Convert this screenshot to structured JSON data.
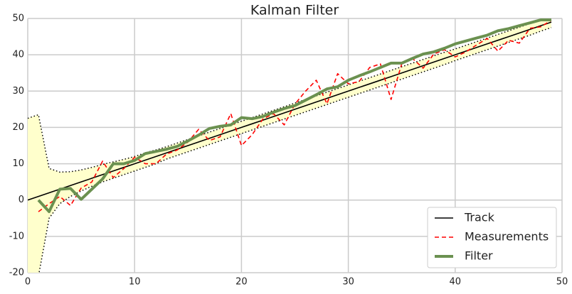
{
  "chart_data": {
    "type": "line",
    "title": "Kalman Filter",
    "x": [
      0,
      1,
      2,
      3,
      4,
      5,
      6,
      7,
      8,
      9,
      10,
      11,
      12,
      13,
      14,
      15,
      16,
      17,
      18,
      19,
      20,
      21,
      22,
      23,
      24,
      25,
      26,
      27,
      28,
      29,
      30,
      31,
      32,
      33,
      34,
      35,
      36,
      37,
      38,
      39,
      40,
      41,
      42,
      43,
      44,
      45,
      46,
      47,
      48,
      49
    ],
    "band": {
      "color": "#ffffcc",
      "upper": [
        22.5,
        23.5,
        8.7,
        7.7,
        7.8,
        8.3,
        9,
        9.8,
        10.5,
        11.2,
        12,
        13,
        13.8,
        14.7,
        15.7,
        16.7,
        17.7,
        18.7,
        19.7,
        20.7,
        21.7,
        22.7,
        23.7,
        24.7,
        25.7,
        26.7,
        27.7,
        28.7,
        29.7,
        30.7,
        31.7,
        32.7,
        33.7,
        34.7,
        35.7,
        36.7,
        37.7,
        38.7,
        39.7,
        40.7,
        41.6,
        42.6,
        43.6,
        44.6,
        45.6,
        46.6,
        47.6,
        48.6,
        49.5,
        50.5
      ],
      "lower": [
        -25,
        -21,
        -5,
        -1,
        1,
        2.5,
        3.8,
        5,
        6,
        7,
        8,
        9,
        10,
        11.3,
        12.3,
        13.3,
        14.3,
        15.3,
        16.3,
        17.3,
        18.3,
        19.3,
        20.3,
        21.3,
        22.3,
        23.3,
        24.3,
        25.3,
        26.3,
        27.3,
        28.3,
        29.3,
        30.3,
        31.3,
        32.3,
        33.3,
        34.3,
        35.3,
        36.3,
        37.3,
        38.4,
        39.4,
        40.4,
        41.4,
        42.4,
        43.4,
        44.4,
        45.4,
        46.5,
        47.5
      ]
    },
    "series": [
      {
        "name": "Track",
        "color": "#000000",
        "style": "solid",
        "width": 1.6,
        "values": [
          0,
          1,
          2,
          3,
          4,
          5,
          6,
          7,
          8,
          9,
          10,
          11,
          12,
          13,
          14,
          15,
          16,
          17,
          18,
          19,
          20,
          21,
          22,
          23,
          24,
          25,
          26,
          27,
          28,
          29,
          30,
          31,
          32,
          33,
          34,
          35,
          36,
          37,
          38,
          39,
          40,
          41,
          42,
          43,
          44,
          45,
          46,
          47,
          48,
          49
        ]
      },
      {
        "name": "Measurements",
        "color": "#ff0000",
        "style": "dashed",
        "width": 1.6,
        "values": [
          null,
          -3.2,
          -1,
          1,
          -1.5,
          3.3,
          5,
          10.7,
          6.2,
          8.7,
          11.8,
          10,
          10,
          12.7,
          13.8,
          16,
          19.5,
          16.4,
          17.4,
          23.8,
          15,
          18,
          22.3,
          23.8,
          20.7,
          26.4,
          30,
          33,
          26.5,
          34.8,
          32,
          32.6,
          36.5,
          37.5,
          27.7,
          37.5,
          39,
          36.3,
          40.2,
          41.4,
          39.4,
          40.8,
          42.7,
          44.5,
          41,
          44,
          43.2,
          47.3,
          47.7,
          49.5
        ]
      },
      {
        "name": "Filter",
        "color": "#6b9150",
        "style": "solid",
        "width": 4,
        "values": [
          null,
          0,
          -3.2,
          3,
          3.2,
          0.2,
          3,
          5.8,
          10,
          10,
          10.9,
          12.8,
          13.4,
          14,
          14.8,
          16.3,
          17.9,
          19.7,
          20.3,
          20.7,
          22.7,
          22.4,
          23,
          24.2,
          25.2,
          26,
          27.5,
          29,
          30.6,
          31.2,
          33,
          34.2,
          35.3,
          36.5,
          37.7,
          37.7,
          39,
          40.2,
          40.8,
          41.8,
          43,
          43.8,
          44.6,
          45.4,
          46.6,
          47.2,
          48,
          48.8,
          49.6,
          49.6
        ]
      }
    ],
    "xlim": [
      0,
      50
    ],
    "xticks": [
      0,
      10,
      20,
      30,
      40,
      50
    ],
    "ylim": [
      -20,
      50
    ],
    "yticks": [
      -20,
      -10,
      0,
      10,
      20,
      30,
      40,
      50
    ],
    "grid": true,
    "legend": "lower right"
  }
}
